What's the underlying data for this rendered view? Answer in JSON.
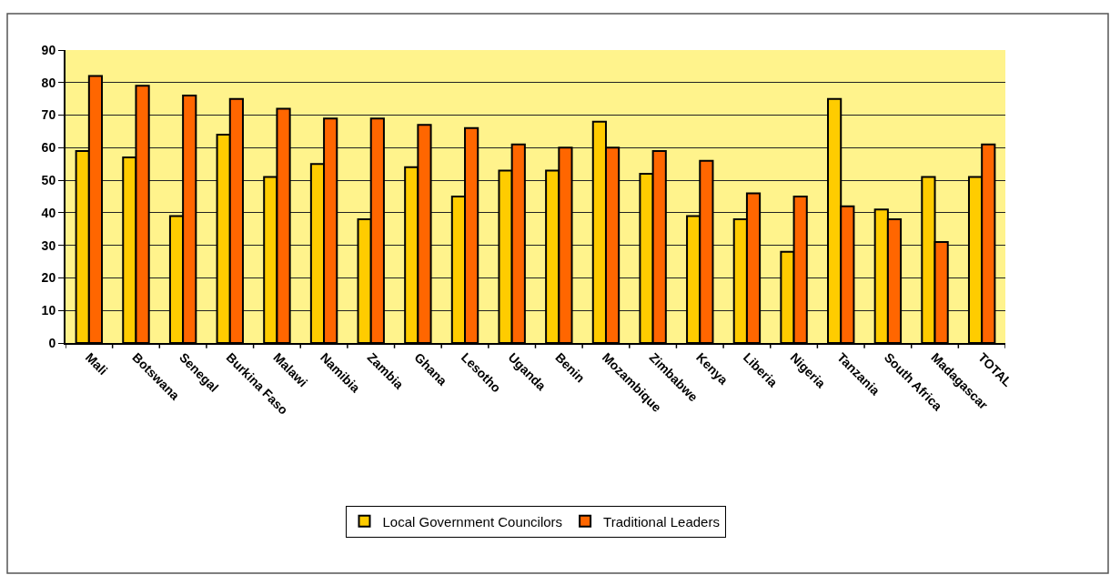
{
  "chart_data": {
    "type": "bar",
    "categories": [
      "Mali",
      "Botswana",
      "Senegal",
      "Burkina Faso",
      "Malawi",
      "Namibia",
      "Zambia",
      "Ghana",
      "Lesotho",
      "Uganda",
      "Benin",
      "Mozambique",
      "Zimbabwe",
      "Kenya",
      "Liberia",
      "Nigeria",
      "Tanzania",
      "South Africa",
      "Madagascar",
      "TOTAL"
    ],
    "series": [
      {
        "name": "Local Government Councilors",
        "color": "#ffcc00",
        "values": [
          59,
          57,
          39,
          64,
          51,
          55,
          38,
          54,
          45,
          53,
          53,
          68,
          52,
          39,
          38,
          28,
          75,
          41,
          51,
          51
        ]
      },
      {
        "name": "Traditional Leaders",
        "color": "#ff6600",
        "values": [
          82,
          79,
          76,
          75,
          72,
          69,
          69,
          67,
          66,
          61,
          60,
          60,
          59,
          56,
          46,
          45,
          42,
          38,
          31,
          61
        ]
      }
    ],
    "ylim": [
      0,
      90
    ],
    "yticks": [
      0,
      10,
      20,
      30,
      40,
      50,
      60,
      70,
      80,
      90
    ],
    "grid": "y",
    "legend": "bottom"
  }
}
